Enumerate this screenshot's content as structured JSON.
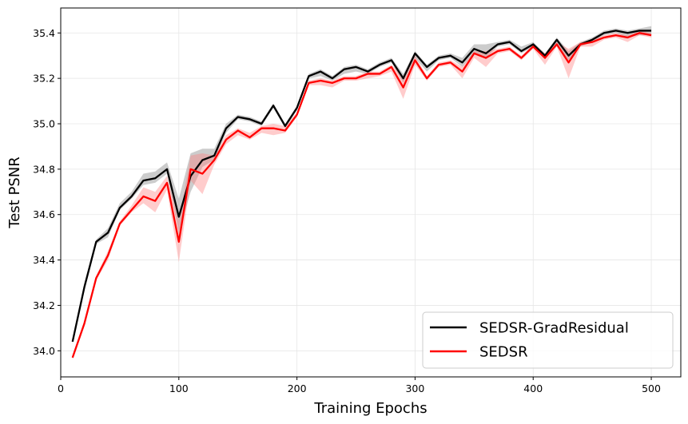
{
  "chart_data": {
    "type": "line",
    "xlabel": "Training Epochs",
    "ylabel": "Test PSNR",
    "xlim": [
      0,
      525
    ],
    "ylim": [
      33.885,
      35.51
    ],
    "xticks": [
      0,
      100,
      200,
      300,
      400,
      500
    ],
    "yticks": [
      34.0,
      34.2,
      34.4,
      34.6,
      34.8,
      35.0,
      35.2,
      35.4
    ],
    "xtick_labels": [
      "0",
      "100",
      "200",
      "300",
      "400",
      "500"
    ],
    "ytick_labels": [
      "34.0",
      "34.2",
      "34.4",
      "34.6",
      "34.8",
      "35.0",
      "35.2",
      "35.4"
    ],
    "grid": true,
    "legend_position": "lower right",
    "x": [
      10,
      20,
      30,
      40,
      50,
      60,
      70,
      80,
      90,
      100,
      110,
      120,
      130,
      140,
      150,
      160,
      170,
      180,
      190,
      200,
      210,
      220,
      230,
      240,
      250,
      260,
      270,
      280,
      290,
      300,
      310,
      320,
      330,
      340,
      350,
      360,
      370,
      380,
      390,
      400,
      410,
      420,
      430,
      440,
      450,
      460,
      470,
      480,
      490,
      500
    ],
    "series": [
      {
        "name": "SEDSR-GradResidual",
        "color": "#000000",
        "band_color": "#808080",
        "values": [
          34.04,
          34.28,
          34.48,
          34.52,
          34.63,
          34.68,
          34.75,
          34.76,
          34.8,
          34.59,
          34.77,
          34.84,
          34.86,
          34.98,
          35.03,
          35.02,
          35.0,
          35.08,
          34.99,
          35.07,
          35.21,
          35.23,
          35.2,
          35.24,
          35.25,
          35.23,
          35.26,
          35.28,
          35.2,
          35.31,
          35.25,
          35.29,
          35.3,
          35.27,
          35.33,
          35.31,
          35.35,
          35.36,
          35.32,
          35.35,
          35.3,
          35.37,
          35.3,
          35.35,
          35.37,
          35.4,
          35.41,
          35.4,
          35.41,
          35.41
        ],
        "lower": [
          34.03,
          34.27,
          34.47,
          34.5,
          34.62,
          34.67,
          34.73,
          34.74,
          34.78,
          34.52,
          34.7,
          34.81,
          34.84,
          34.96,
          35.02,
          35.01,
          34.99,
          35.07,
          34.98,
          35.06,
          35.2,
          35.21,
          35.19,
          35.22,
          35.23,
          35.22,
          35.25,
          35.27,
          35.18,
          35.29,
          35.23,
          35.28,
          35.29,
          35.25,
          35.31,
          35.29,
          35.34,
          35.35,
          35.31,
          35.34,
          35.29,
          35.35,
          35.28,
          35.34,
          35.36,
          35.39,
          35.4,
          35.38,
          35.39,
          35.39
        ],
        "upper": [
          34.05,
          34.3,
          34.49,
          34.54,
          34.65,
          34.7,
          34.78,
          34.79,
          34.83,
          34.67,
          34.87,
          34.89,
          34.89,
          35.0,
          35.04,
          35.03,
          35.01,
          35.09,
          35.0,
          35.08,
          35.22,
          35.24,
          35.21,
          35.25,
          35.26,
          35.24,
          35.27,
          35.29,
          35.22,
          35.32,
          35.26,
          35.3,
          35.31,
          35.29,
          35.35,
          35.35,
          35.36,
          35.37,
          35.34,
          35.36,
          35.31,
          35.38,
          35.32,
          35.36,
          35.38,
          35.41,
          35.42,
          35.41,
          35.42,
          35.43
        ]
      },
      {
        "name": "SEDSR",
        "color": "#ff0000",
        "band_color": "#ff8080",
        "values": [
          33.97,
          34.12,
          34.32,
          34.42,
          34.56,
          34.62,
          34.68,
          34.66,
          34.74,
          34.48,
          34.8,
          34.78,
          34.84,
          34.93,
          34.97,
          34.94,
          34.98,
          34.98,
          34.97,
          35.04,
          35.18,
          35.19,
          35.18,
          35.2,
          35.2,
          35.22,
          35.22,
          35.25,
          35.16,
          35.28,
          35.2,
          35.26,
          35.27,
          35.23,
          35.31,
          35.29,
          35.32,
          35.33,
          35.29,
          35.34,
          35.29,
          35.35,
          35.27,
          35.35,
          35.36,
          35.38,
          35.39,
          35.38,
          35.4,
          35.39
        ],
        "lower": [
          33.96,
          34.11,
          34.31,
          34.4,
          34.55,
          34.61,
          34.65,
          34.61,
          34.71,
          34.39,
          34.75,
          34.69,
          34.82,
          34.91,
          34.95,
          34.93,
          34.96,
          34.95,
          34.96,
          35.03,
          35.17,
          35.17,
          35.16,
          35.19,
          35.19,
          35.2,
          35.21,
          35.23,
          35.11,
          35.26,
          35.19,
          35.25,
          35.26,
          35.2,
          35.29,
          35.25,
          35.31,
          35.32,
          35.28,
          35.33,
          35.26,
          35.34,
          35.2,
          35.34,
          35.34,
          35.37,
          35.38,
          35.36,
          35.39,
          35.38
        ],
        "upper": [
          33.98,
          34.13,
          34.33,
          34.44,
          34.57,
          34.64,
          34.72,
          34.7,
          34.77,
          34.57,
          34.86,
          34.87,
          34.86,
          34.95,
          34.98,
          34.96,
          34.99,
          35.0,
          34.99,
          35.05,
          35.19,
          35.2,
          35.19,
          35.21,
          35.21,
          35.23,
          35.23,
          35.26,
          35.21,
          35.3,
          35.21,
          35.27,
          35.28,
          35.25,
          35.32,
          35.32,
          35.33,
          35.34,
          35.3,
          35.35,
          35.31,
          35.36,
          35.33,
          35.36,
          35.37,
          35.39,
          35.4,
          35.39,
          35.41,
          35.4
        ]
      }
    ]
  }
}
